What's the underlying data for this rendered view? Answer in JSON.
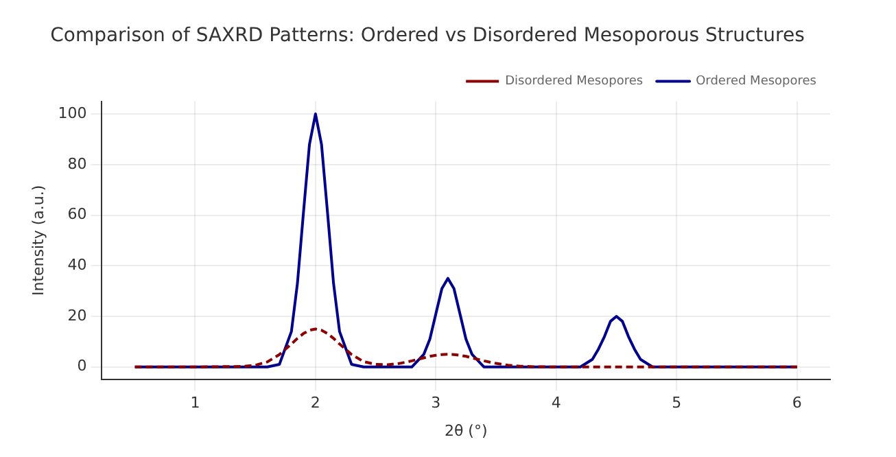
{
  "chart_data": {
    "type": "line",
    "title": "Comparison of SAXRD Patterns: Ordered vs Disordered Mesoporous Structures",
    "xlabel": "2θ (°)",
    "ylabel": "Intensity (a.u.)",
    "x": [
      0.5,
      1,
      1.4,
      1.5,
      1.6,
      1.7,
      1.8,
      1.85,
      1.9,
      1.95,
      2,
      2.05,
      2.1,
      2.15,
      2.2,
      2.3,
      2.4,
      2.5,
      2.6,
      2.7,
      2.8,
      2.9,
      2.95,
      3,
      3.05,
      3.1,
      3.15,
      3.2,
      3.25,
      3.3,
      3.4,
      3.5,
      3.6,
      3.7,
      3.8,
      4,
      4.2,
      4.3,
      4.35,
      4.4,
      4.45,
      4.5,
      4.55,
      4.6,
      4.65,
      4.7,
      4.8,
      5,
      6
    ],
    "series": [
      {
        "name": "Ordered Mesopores",
        "color": "#00008b",
        "line_style": "solid",
        "values": [
          0,
          0,
          0,
          0,
          0,
          1,
          14,
          33,
          61,
          88,
          100,
          88,
          61,
          33,
          14,
          1,
          0,
          0,
          0,
          0,
          0,
          5,
          11,
          21,
          31,
          35,
          31,
          21,
          11,
          5,
          0,
          0,
          0,
          0,
          0,
          0,
          0,
          3,
          7,
          12,
          18,
          20,
          18,
          12,
          7,
          3,
          0,
          0,
          0
        ]
      },
      {
        "name": "Disordered Mesopores",
        "color": "#8b0000",
        "line_style": "dashed",
        "values": [
          0,
          0,
          0.2,
          0.7,
          2,
          4.9,
          9.1,
          11.3,
          13.2,
          14.5,
          15,
          14.5,
          13.2,
          11.3,
          9.1,
          4.9,
          2.1,
          1,
          0.9,
          1.4,
          2.4,
          3.6,
          4.2,
          4.6,
          4.9,
          5,
          4.9,
          4.6,
          4.2,
          3.6,
          2.4,
          1.4,
          0.7,
          0.3,
          0.1,
          0,
          0,
          0,
          0,
          0,
          0,
          0,
          0,
          0,
          0,
          0,
          0,
          0,
          0
        ]
      }
    ],
    "xlim": [
      0.225,
      6.275
    ],
    "xticks": [
      1,
      2,
      3,
      4,
      5,
      6
    ],
    "ylim": [
      -5,
      105
    ],
    "yticks": [
      0,
      20,
      40,
      60,
      80,
      100
    ],
    "grid": true,
    "legend": "top right"
  }
}
